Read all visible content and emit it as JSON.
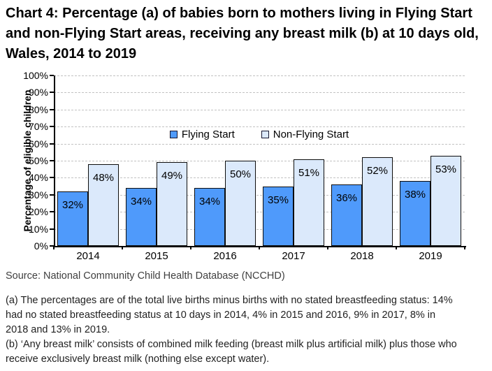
{
  "title": "Chart 4: Percentage (a) of babies born to mothers living in Flying Start and non-Flying Start areas, receiving any breast milk (b) at 10 days old, Wales, 2014 to 2019",
  "chart_data": {
    "type": "bar",
    "categories": [
      "2014",
      "2015",
      "2016",
      "2017",
      "2018",
      "2019"
    ],
    "series": [
      {
        "name": "Flying Start",
        "values": [
          32,
          34,
          34,
          35,
          36,
          38
        ],
        "color": "#4f9afb"
      },
      {
        "name": "Non-Flying Start",
        "values": [
          48,
          49,
          50,
          51,
          52,
          53
        ],
        "color": "#dbe9fb"
      }
    ],
    "bar_labels": [
      "32%",
      "34%",
      "34%",
      "35%",
      "36%",
      "38%",
      "48%",
      "49%",
      "50%",
      "51%",
      "52%",
      "53%"
    ],
    "ylabel": "Percentage of eligible children",
    "xlabel": "",
    "ylim": [
      0,
      100
    ],
    "ytick_step": 10,
    "ytick_suffix": "%",
    "grid": "horizontal-dashed",
    "legend_position": "inside-upper-center",
    "colors": {
      "bar_border": "#0d0d0d",
      "gridline": "#c2c2c2",
      "axis": "#000000",
      "label_text": "#000000"
    }
  },
  "footer": {
    "source": "Source: National Community Child Health Database (NCCHD)",
    "note_a": "(a) The percentages are of the total live births minus births with no stated breastfeeding status: 14% had no stated breastfeeding status at 10 days in 2014, 4% in 2015 and 2016, 9% in 2017, 8% in 2018 and 13% in 2019.",
    "note_b": "(b) ‘Any breast milk’ consists of combined milk feeding (breast milk plus artificial milk) plus those who receive exclusively breast milk (nothing else except water)."
  }
}
